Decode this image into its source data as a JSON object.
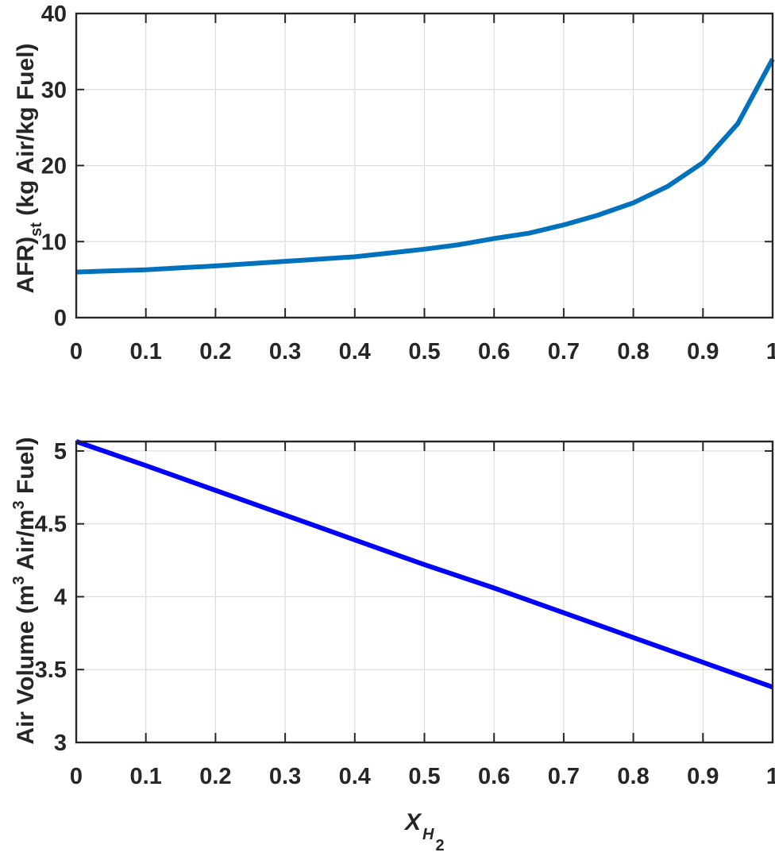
{
  "figure": {
    "xlabel": {
      "main": "X",
      "sub": "H",
      "subsub": "2"
    }
  },
  "chart_data": [
    {
      "type": "line",
      "title": "",
      "xlabel": "",
      "ylabel": "AFR)st (kg Air/kg Fuel)",
      "ylabel_parts": {
        "pre": "AFR)",
        "sub": "st",
        "post": " (kg Air/kg Fuel)"
      },
      "xlim": [
        0,
        1
      ],
      "ylim": [
        0,
        40
      ],
      "grid": true,
      "xticks": [
        0,
        0.1,
        0.2,
        0.3,
        0.4,
        0.5,
        0.6,
        0.7,
        0.8,
        0.9,
        1
      ],
      "xtick_labels": [
        "0",
        "0.1",
        "0.2",
        "0.3",
        "0.4",
        "0.5",
        "0.6",
        "0.7",
        "0.8",
        "0.9",
        "1"
      ],
      "yticks": [
        0,
        10,
        20,
        30,
        40
      ],
      "ytick_labels": [
        "0",
        "10",
        "20",
        "30",
        "40"
      ],
      "series": [
        {
          "name": "AFR_st",
          "color": "#0072BD",
          "x": [
            0,
            0.05,
            0.1,
            0.15,
            0.2,
            0.25,
            0.3,
            0.35,
            0.4,
            0.45,
            0.5,
            0.55,
            0.6,
            0.65,
            0.7,
            0.75,
            0.8,
            0.85,
            0.9,
            0.95,
            1.0
          ],
          "y": [
            6.0,
            6.15,
            6.3,
            6.55,
            6.8,
            7.1,
            7.4,
            7.7,
            8.0,
            8.5,
            9.0,
            9.6,
            10.4,
            11.1,
            12.2,
            13.5,
            15.1,
            17.3,
            20.4,
            25.5,
            34.0
          ]
        }
      ]
    },
    {
      "type": "line",
      "title": "",
      "xlabel": "X_H2",
      "ylabel": "Air Volume (m3 Air/m3 Fuel)",
      "ylabel_parts": {
        "a": "Air Volume (m",
        "sup1": "3",
        "b": " Air/m",
        "sup2": "3",
        "c": " Fuel)"
      },
      "xlim": [
        0,
        1
      ],
      "ylim": [
        3,
        5.065
      ],
      "grid": true,
      "xticks": [
        0,
        0.1,
        0.2,
        0.3,
        0.4,
        0.5,
        0.6,
        0.7,
        0.8,
        0.9,
        1
      ],
      "xtick_labels": [
        "0",
        "0.1",
        "0.2",
        "0.3",
        "0.4",
        "0.5",
        "0.6",
        "0.7",
        "0.8",
        "0.9",
        "1"
      ],
      "yticks": [
        3,
        3.5,
        4,
        4.5,
        5
      ],
      "ytick_labels": [
        "3",
        "3.5",
        "4",
        "4.5",
        "5"
      ],
      "series": [
        {
          "name": "Air Volume",
          "color": "#0000FF",
          "x": [
            0,
            0.1,
            0.2,
            0.3,
            0.4,
            0.5,
            0.6,
            0.7,
            0.8,
            0.9,
            1.0
          ],
          "y": [
            5.065,
            4.9,
            4.73,
            4.56,
            4.39,
            4.22,
            4.06,
            3.89,
            3.72,
            3.55,
            3.38
          ]
        }
      ]
    }
  ]
}
